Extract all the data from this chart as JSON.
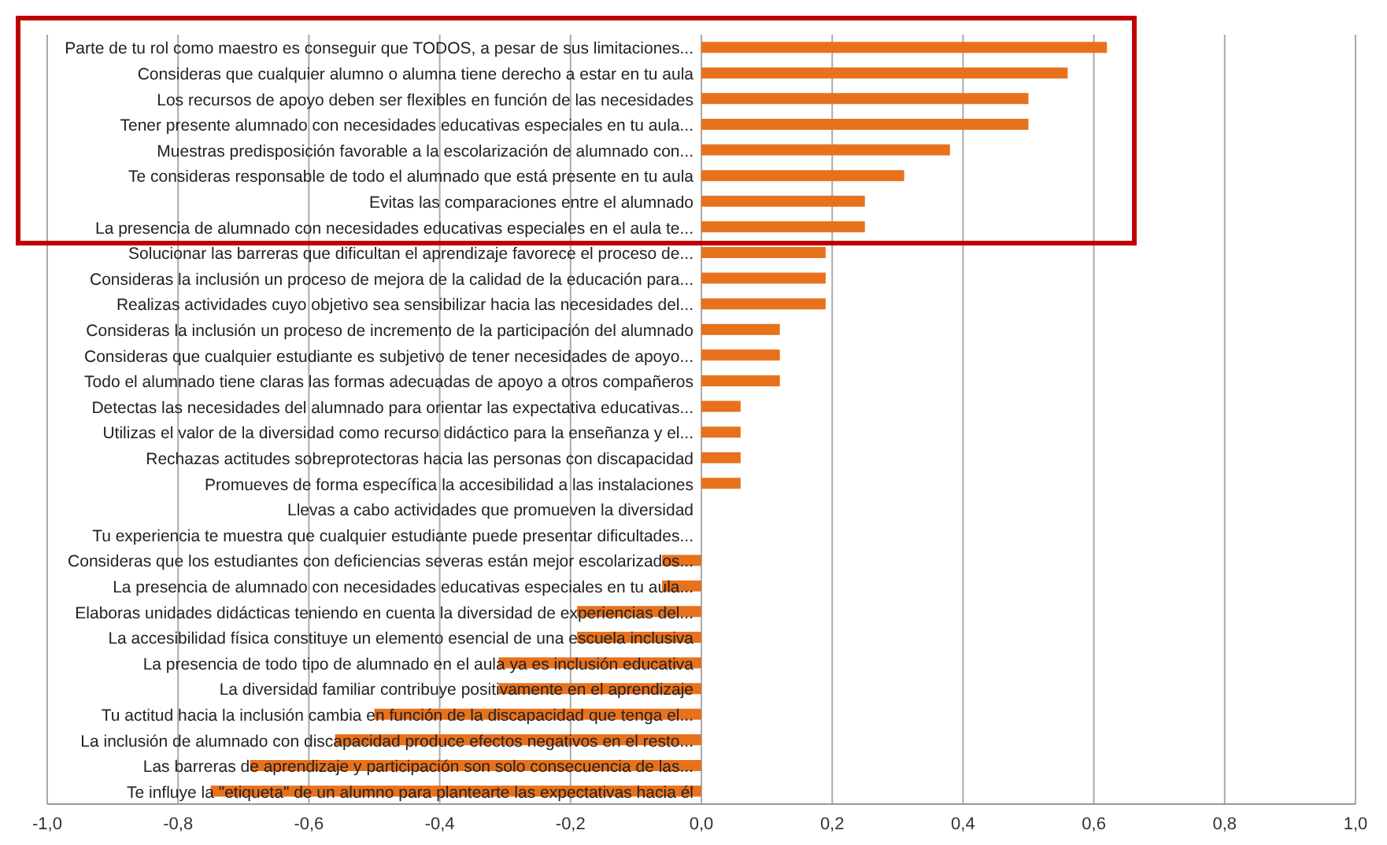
{
  "chart_data": {
    "type": "bar",
    "orientation": "horizontal",
    "categories": [
      "Parte de tu rol como maestro es conseguir que TODOS, a pesar de sus limitaciones...",
      "Consideras que cualquier alumno o alumna tiene derecho a estar en tu aula",
      "Los recursos de apoyo deben ser flexibles en función de las necesidades",
      "Tener presente alumnado con necesidades educativas especiales en tu aula...",
      "Muestras predisposición favorable a la escolarización de alumnado con...",
      "Te consideras responsable de todo el alumnado que está presente en tu aula",
      "Evitas las comparaciones entre el alumnado",
      "La presencia de alumnado con necesidades educativas especiales en el aula te...",
      "Solucionar las barreras que dificultan el aprendizaje favorece el proceso de...",
      "Consideras la inclusión un proceso de mejora de la calidad de la educación para...",
      "Realizas actividades cuyo objetivo sea sensibilizar hacia las necesidades del...",
      "Consideras la inclusión un proceso de incremento de la participación del alumnado",
      "Consideras que cualquier estudiante es subjetivo de tener necesidades de apoyo...",
      "Todo el alumnado tiene claras las formas adecuadas de apoyo a otros compañeros",
      "Detectas las necesidades del alumnado para orientar las expectativa educativas...",
      "Utilizas el valor de la diversidad como recurso didáctico para la enseñanza y el...",
      "Rechazas actitudes sobreprotectoras hacia las personas con discapacidad",
      "Promueves de forma específica la accesibilidad a las instalaciones",
      "Llevas a cabo actividades que promueven la diversidad",
      "Tu experiencia te muestra que cualquier estudiante puede presentar dificultades...",
      "Consideras que los estudiantes con deficiencias severas están mejor escolarizados...",
      "La presencia de alumnado con necesidades educativas especiales en tu aula...",
      "Elaboras unidades didácticas teniendo en cuenta la diversidad de experiencias del...",
      "La accesibilidad física constituye un elemento esencial de una escuela inclusiva",
      "La presencia de todo tipo de alumnado en el aula ya es inclusión educativa",
      "La diversidad familiar contribuye positivamente en el aprendizaje",
      "Tu actitud hacia la inclusión cambia en función de la discapacidad que tenga el...",
      "La inclusión de alumnado con discapacidad produce efectos negativos en el resto...",
      "Las barreras de aprendizaje y participación son solo consecuencia de las...",
      "Te influye la \"etiqueta\" de un alumno para plantearte las expectativas hacia él"
    ],
    "values": [
      0.62,
      0.56,
      0.5,
      0.5,
      0.38,
      0.31,
      0.25,
      0.25,
      0.19,
      0.19,
      0.19,
      0.12,
      0.12,
      0.12,
      0.06,
      0.06,
      0.06,
      0.06,
      0,
      0,
      -0.06,
      -0.06,
      -0.19,
      -0.19,
      -0.31,
      -0.31,
      -0.5,
      -0.56,
      -0.69,
      -0.75
    ],
    "color": "#e8711c",
    "xlim": [
      -1,
      1
    ],
    "xticks": [
      {
        "value": -1,
        "label": "-1,0"
      },
      {
        "value": -0.8,
        "label": "-0,8"
      },
      {
        "value": -0.6,
        "label": "-0,6"
      },
      {
        "value": -0.4,
        "label": "-0,4"
      },
      {
        "value": -0.2,
        "label": "-0,2"
      },
      {
        "value": 0,
        "label": "0,0"
      },
      {
        "value": 0.2,
        "label": "0,2"
      },
      {
        "value": 0.4,
        "label": "0,4"
      },
      {
        "value": 0.6,
        "label": "0,6"
      },
      {
        "value": 0.8,
        "label": "0,8"
      },
      {
        "value": 1,
        "label": "1,0"
      }
    ],
    "grid": "x"
  }
}
